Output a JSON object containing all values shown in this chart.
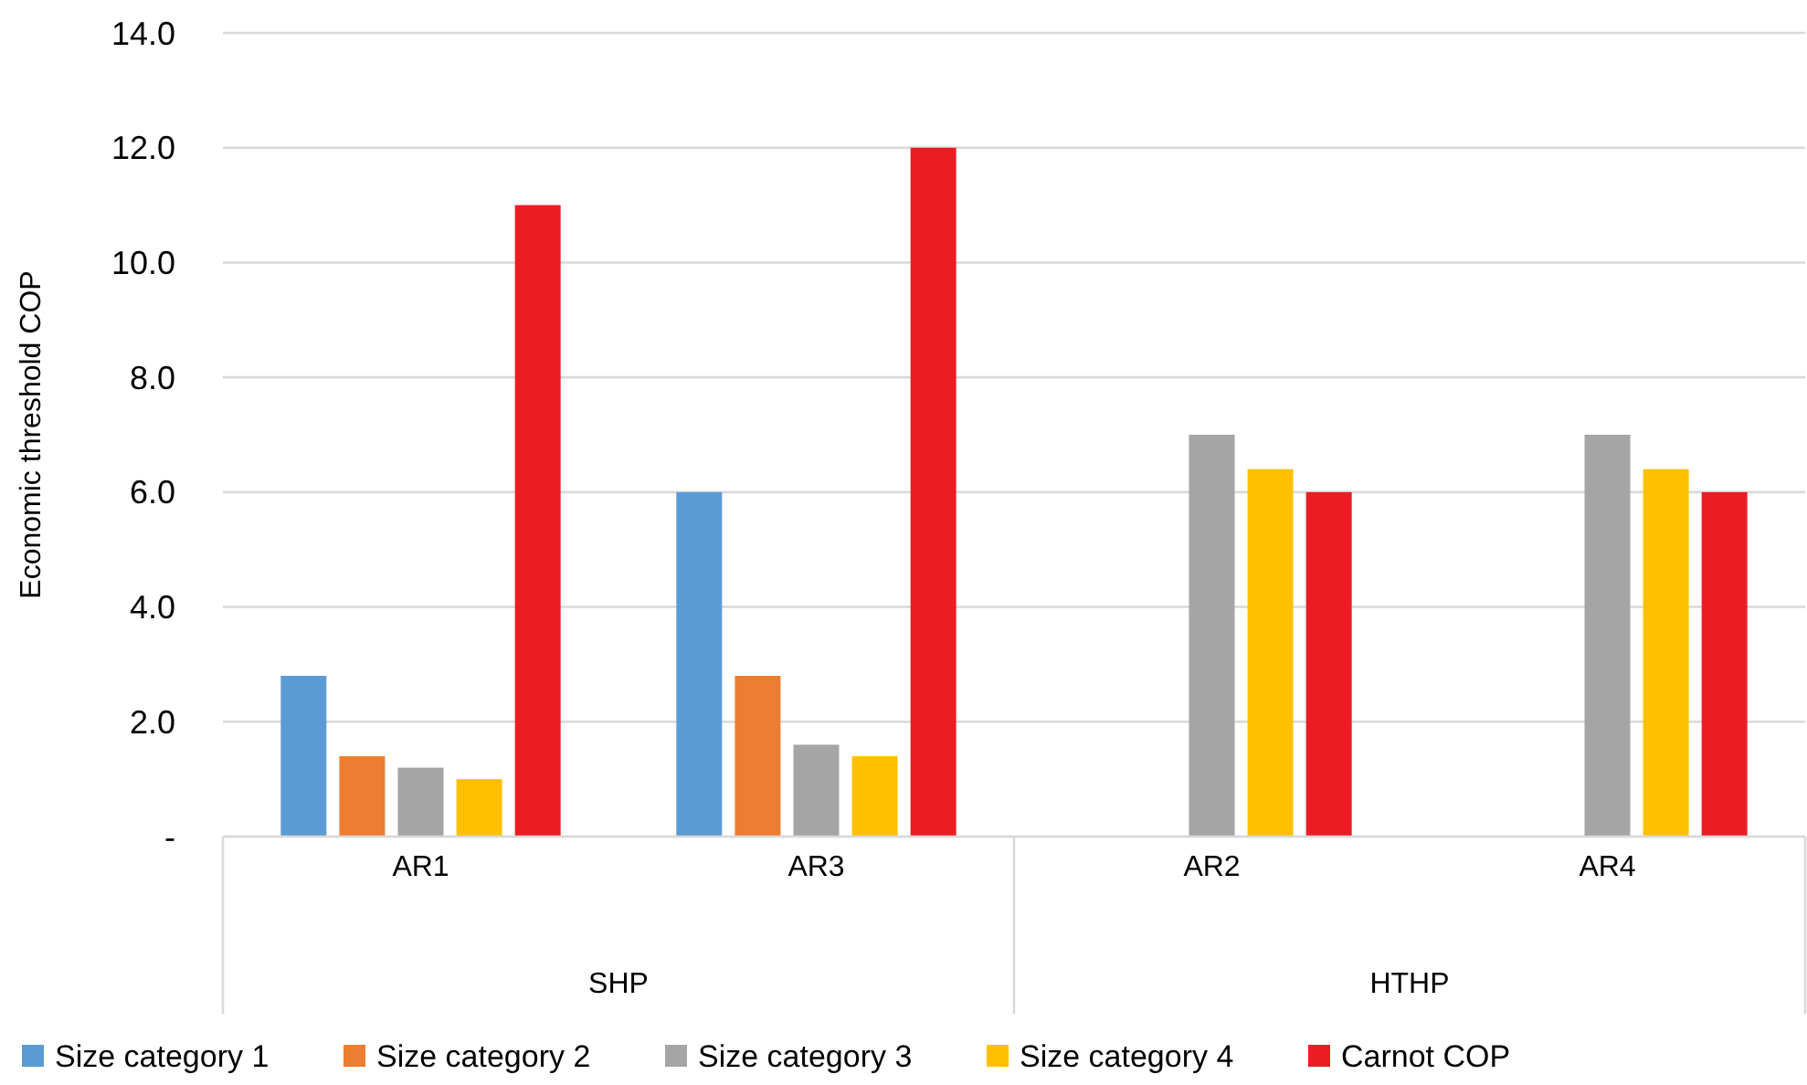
{
  "chart_data": {
    "type": "bar",
    "ylabel": "Economic threshold COP",
    "categories": [
      "AR1",
      "AR3",
      "AR2",
      "AR4"
    ],
    "annotations": [
      "SHP",
      "HTHP"
    ],
    "series": [
      {
        "name": "Size category 1",
        "color": "#5b9bd5",
        "values": [
          2.8,
          6.0,
          null,
          null
        ]
      },
      {
        "name": "Size category 2",
        "color": "#ed7d31",
        "values": [
          1.4,
          2.8,
          null,
          null
        ]
      },
      {
        "name": "Size category 3",
        "color": "#a5a5a5",
        "values": [
          1.2,
          1.6,
          7.0,
          7.0
        ]
      },
      {
        "name": "Size category 4",
        "color": "#ffc000",
        "values": [
          1.0,
          1.4,
          6.4,
          6.4
        ]
      },
      {
        "name": "Carnot COP",
        "color": "#ed1c24",
        "values": [
          11.0,
          12.0,
          6.0,
          6.0
        ]
      }
    ],
    "ylim": [
      0,
      14
    ],
    "yticks": [
      {
        "value": 0,
        "label": "-"
      },
      {
        "value": 2,
        "label": "2.0"
      },
      {
        "value": 4,
        "label": "4.0"
      },
      {
        "value": 6,
        "label": "6.0"
      },
      {
        "value": 8,
        "label": "8.0"
      },
      {
        "value": 10,
        "label": "10.0"
      },
      {
        "value": 12,
        "label": "12.0"
      },
      {
        "value": 14,
        "label": "14.0"
      }
    ],
    "grid": "y",
    "legend": "bottom"
  }
}
